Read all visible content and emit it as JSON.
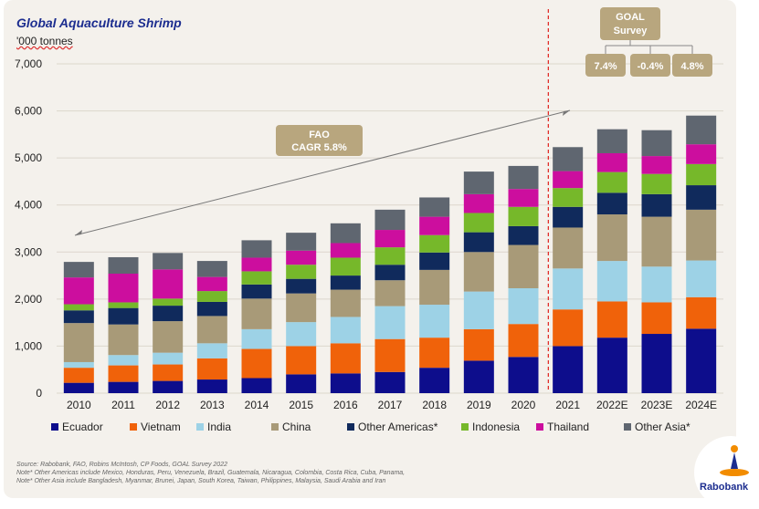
{
  "title": "Global Aquaculture Shrimp",
  "unit": "'000 tonnes",
  "source_lines": [
    "Source: Rabobank, FAO, Robins McIntosh, CP Foods, GOAL Survey 2022",
    "Note* Other Americas include Mexico, Honduras, Peru, Venezuela, Brazil, Guatemala, Nicaragua, Colombia, Costa Rica, Cuba, Panama,",
    "Note* Other Asia include Bangladesh, Myanmar, Brunei, Japan, South Korea, Taiwan, Philippines, Malaysia, Saudi Arabia and Iran"
  ],
  "logo_text": "Rabobank",
  "fao_box": [
    "FAO",
    "CAGR 5.8%"
  ],
  "goal_box": [
    "GOAL",
    "Survey"
  ],
  "goal_values": [
    "7.4%",
    "-0.4%",
    "4.8%"
  ],
  "colors": {
    "Ecuador": "#0d0d8c",
    "Vietnam": "#f0620a",
    "India": "#9dd2e6",
    "China": "#a89a78",
    "Other Americas*": "#102a5c",
    "Indonesia": "#76b82a",
    "Thailand": "#cc0e9e",
    "Other Asia*": "#5f6670",
    "annotation_box": "#b8a67e",
    "divider": "#e0201c"
  },
  "chart_data": {
    "type": "bar",
    "stacked": true,
    "categories": [
      "2010",
      "2011",
      "2012",
      "2013",
      "2014",
      "2015",
      "2016",
      "2017",
      "2018",
      "2019",
      "2020",
      "2021",
      "2022E",
      "2023E",
      "2024E"
    ],
    "ylim": [
      0,
      7000
    ],
    "yticks": [
      "0",
      "1,000",
      "2,000",
      "3,000",
      "4,000",
      "5,000",
      "6,000",
      "7,000"
    ],
    "grid": true,
    "legend_position": "bottom",
    "series": [
      {
        "name": "Ecuador",
        "values": [
          220,
          240,
          260,
          290,
          320,
          400,
          420,
          450,
          540,
          690,
          770,
          1000,
          1180,
          1260,
          1370
        ]
      },
      {
        "name": "Vietnam",
        "values": [
          320,
          350,
          350,
          450,
          620,
          600,
          640,
          700,
          640,
          670,
          700,
          780,
          770,
          670,
          670
        ]
      },
      {
        "name": "India",
        "values": [
          120,
          220,
          250,
          320,
          420,
          510,
          560,
          700,
          700,
          800,
          760,
          870,
          860,
          760,
          780
        ]
      },
      {
        "name": "China",
        "values": [
          830,
          650,
          670,
          580,
          650,
          610,
          580,
          550,
          740,
          840,
          920,
          870,
          990,
          1060,
          1080
        ]
      },
      {
        "name": "Other Americas*",
        "values": [
          270,
          350,
          330,
          300,
          300,
          310,
          300,
          330,
          370,
          420,
          400,
          440,
          460,
          480,
          520
        ]
      },
      {
        "name": "Indonesia",
        "values": [
          130,
          120,
          150,
          230,
          280,
          300,
          380,
          370,
          370,
          410,
          410,
          400,
          440,
          430,
          450
        ]
      },
      {
        "name": "Thailand",
        "values": [
          570,
          610,
          620,
          300,
          290,
          300,
          310,
          370,
          390,
          400,
          380,
          360,
          400,
          380,
          420
        ]
      },
      {
        "name": "Other Asia*",
        "values": [
          330,
          350,
          350,
          340,
          370,
          380,
          420,
          430,
          410,
          480,
          490,
          510,
          510,
          550,
          610
        ]
      }
    ]
  }
}
